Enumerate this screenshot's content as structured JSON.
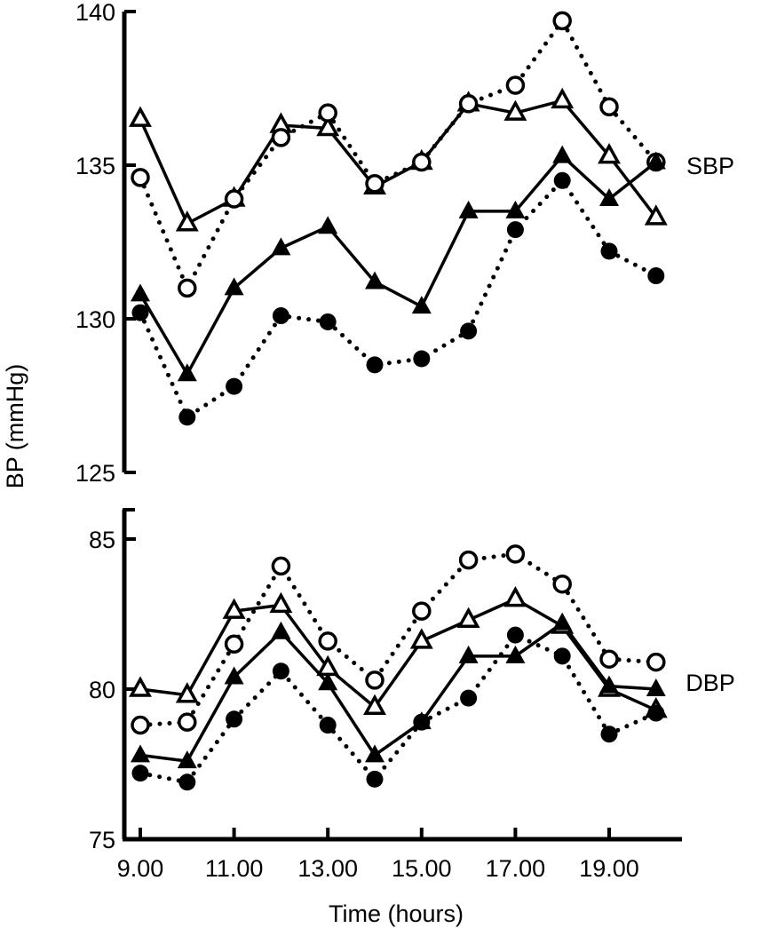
{
  "chart_data": {
    "type": "line",
    "ylabel": "BP (mmHg)",
    "xlabel": "Time (hours)",
    "x": [
      9,
      10,
      11,
      12,
      13,
      14,
      15,
      16,
      17,
      18,
      19,
      20
    ],
    "x_tick_labels": [
      "9.00",
      "11.00",
      "13.00",
      "15.00",
      "17.00",
      "19.00"
    ],
    "x_tick_values": [
      9,
      11,
      13,
      15,
      17,
      19
    ],
    "panels": [
      {
        "label": "SBP",
        "ylim": [
          125,
          140
        ],
        "y_ticks": [
          125,
          130,
          135,
          140
        ],
        "series": [
          {
            "name": "open-triangle-solid",
            "marker": "open-triangle",
            "line": "solid",
            "values": [
              136.5,
              133.1,
              133.9,
              136.3,
              136.2,
              134.3,
              135.1,
              137.0,
              136.7,
              137.1,
              135.3,
              133.3
            ]
          },
          {
            "name": "open-circle-dotted",
            "marker": "open-circle",
            "line": "dotted",
            "values": [
              134.6,
              131.0,
              133.9,
              135.9,
              136.7,
              134.4,
              135.1,
              137.0,
              137.6,
              139.7,
              136.9,
              135.1
            ]
          },
          {
            "name": "filled-triangle-solid",
            "marker": "filled-triangle",
            "line": "solid",
            "values": [
              130.8,
              128.2,
              131.0,
              132.3,
              133.0,
              131.2,
              130.4,
              133.5,
              133.5,
              135.3,
              133.9,
              135.1
            ]
          },
          {
            "name": "filled-circle-dotted",
            "marker": "filled-circle",
            "line": "dotted",
            "values": [
              130.2,
              126.8,
              127.8,
              130.1,
              129.9,
              128.5,
              128.7,
              129.6,
              132.9,
              134.5,
              132.2,
              131.4
            ]
          }
        ]
      },
      {
        "label": "DBP",
        "ylim": [
          75,
          86
        ],
        "y_ticks": [
          75,
          80,
          85
        ],
        "series": [
          {
            "name": "open-triangle-solid",
            "marker": "open-triangle",
            "line": "solid",
            "values": [
              80.0,
              79.8,
              82.6,
              82.8,
              80.7,
              79.4,
              81.6,
              82.3,
              83.0,
              82.1,
              80.0,
              79.3
            ]
          },
          {
            "name": "open-circle-dotted",
            "marker": "open-circle",
            "line": "dotted",
            "values": [
              78.8,
              78.9,
              81.5,
              84.1,
              81.6,
              80.3,
              82.6,
              84.3,
              84.5,
              83.5,
              81.0,
              80.9
            ]
          },
          {
            "name": "filled-triangle-solid",
            "marker": "filled-triangle",
            "line": "solid",
            "values": [
              77.8,
              77.6,
              80.4,
              81.9,
              80.2,
              77.8,
              78.9,
              81.1,
              81.1,
              82.2,
              80.1,
              80.0
            ]
          },
          {
            "name": "filled-circle-dotted",
            "marker": "filled-circle",
            "line": "dotted",
            "values": [
              77.2,
              76.9,
              79.0,
              80.6,
              78.8,
              77.0,
              78.9,
              79.7,
              81.8,
              81.1,
              78.5,
              79.2
            ]
          }
        ]
      }
    ]
  }
}
